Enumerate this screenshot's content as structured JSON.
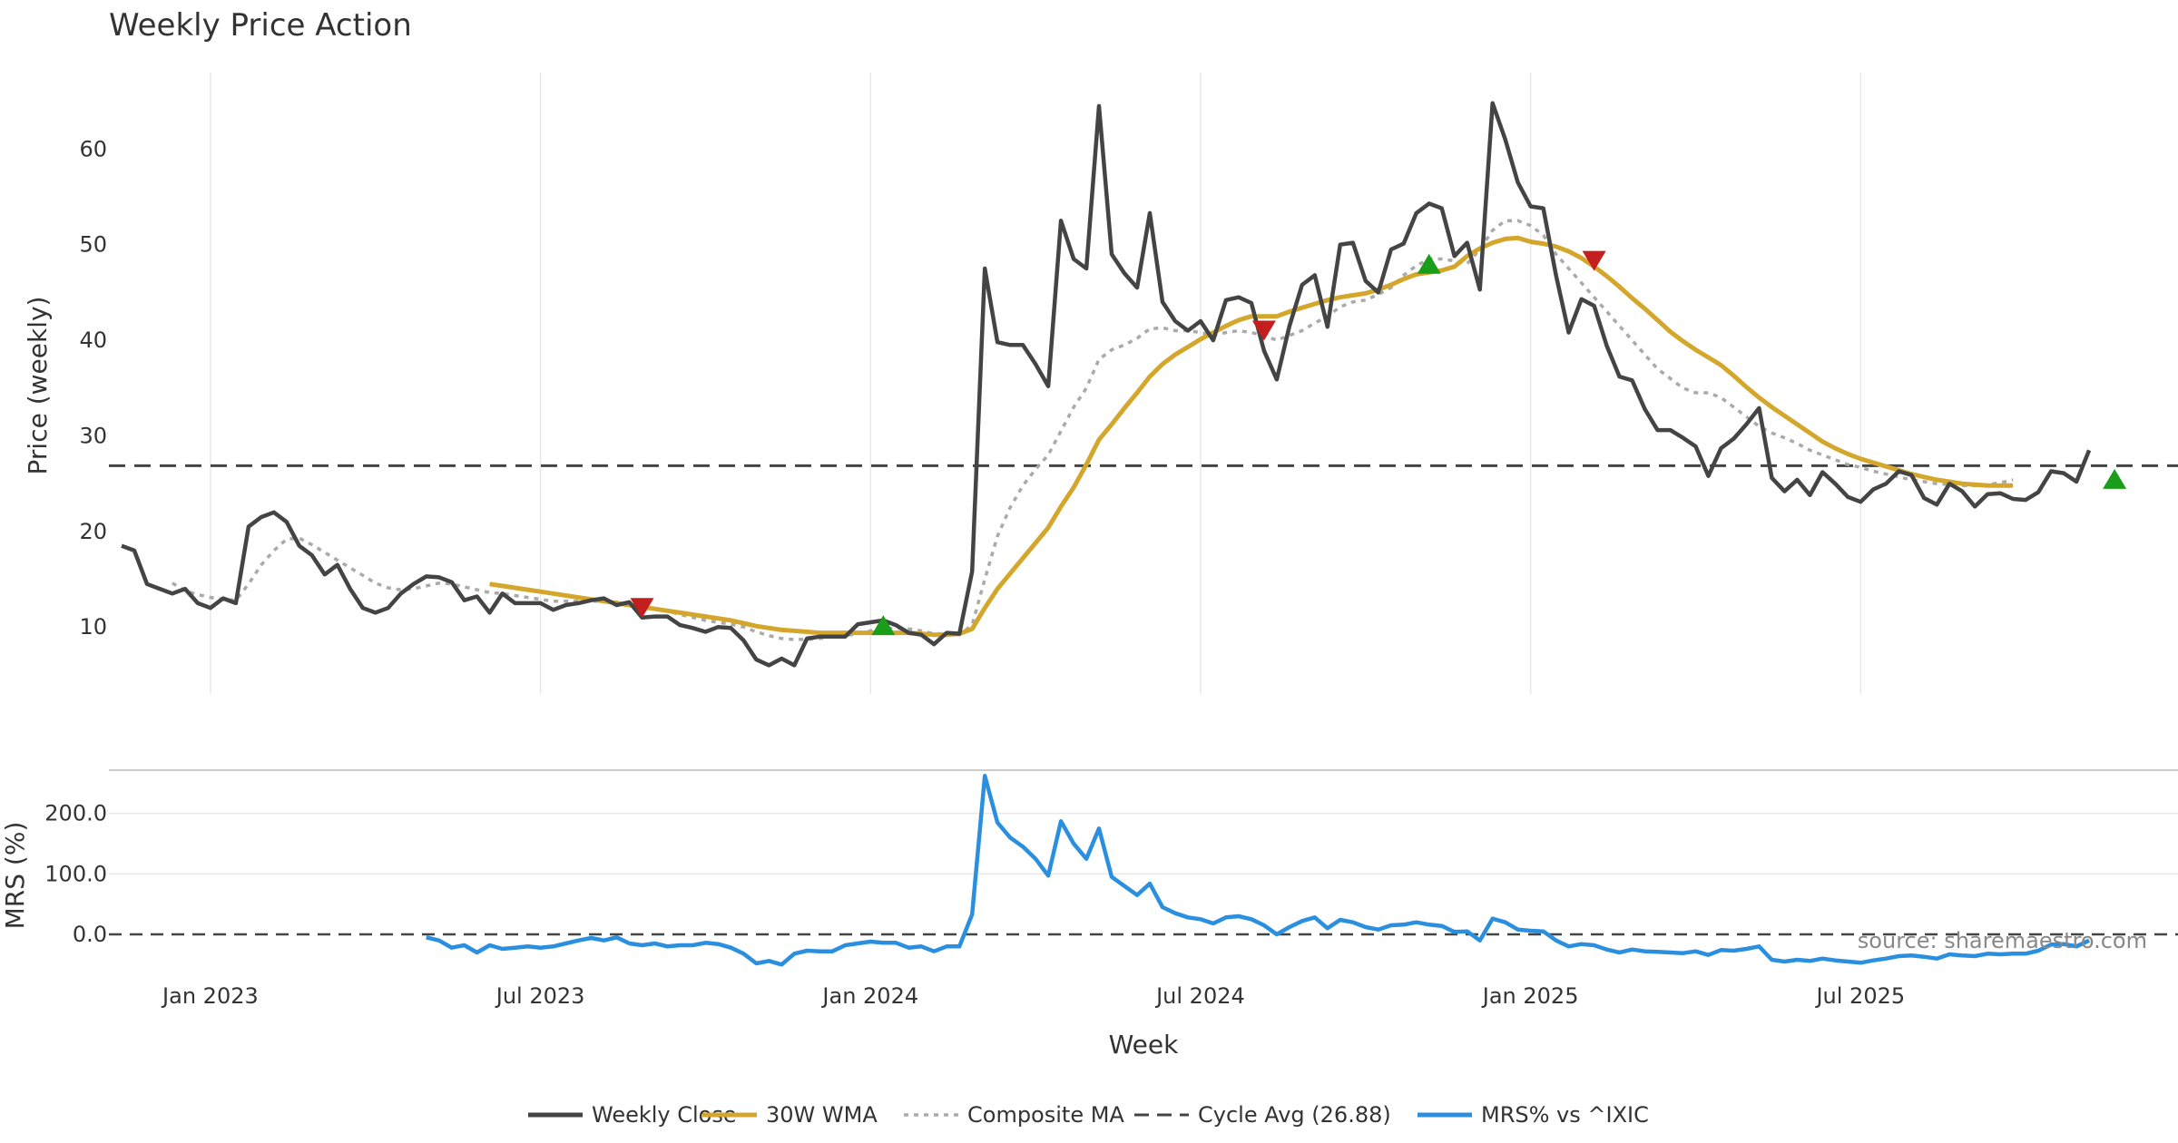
{
  "chart_data": {
    "type": "line",
    "title": "Weekly Price Action",
    "xlabel": "Week",
    "source": "source: sharemaestro.com",
    "x_ticks": [
      "Jan 2023",
      "Jul 2023",
      "Jan 2024",
      "Jul 2024",
      "Jan 2025",
      "Jul 2025"
    ],
    "x_tick_weeks": [
      7,
      33,
      59,
      85,
      111,
      137
    ],
    "x_range_weeks": [
      -1,
      162
    ],
    "price_panel": {
      "ylabel": "Price (weekly)",
      "ylim": [
        3,
        68
      ],
      "yticks": [
        10,
        20,
        30,
        40,
        50,
        60
      ],
      "cycle_avg": 26.88,
      "weekly_close": [
        18.5,
        18,
        14.5,
        14,
        13.5,
        14,
        12.5,
        12,
        13,
        12.5,
        20.5,
        21.5,
        22,
        21,
        18.5,
        17.5,
        15.5,
        16.5,
        14,
        12,
        11.5,
        12,
        13.5,
        14.5,
        15.3,
        15.2,
        14.7,
        12.8,
        13.2,
        11.5,
        13.5,
        12.5,
        12.5,
        12.5,
        11.8,
        12.3,
        12.5,
        12.8,
        13,
        12.3,
        12.6,
        11,
        11.1,
        11.1,
        10.2,
        9.9,
        9.5,
        10,
        9.9,
        8.6,
        6.6,
        6,
        6.7,
        6,
        8.8,
        9,
        9,
        9,
        10.3,
        10.5,
        10.7,
        10.2,
        9.4,
        9.2,
        8.2,
        9.4,
        9.3,
        15.8,
        47.5,
        39.8,
        39.5,
        39.5,
        37.5,
        35.2,
        52.5,
        48.5,
        47.5,
        64.5,
        49,
        47,
        45.5,
        53.3,
        44,
        42,
        41,
        42,
        40,
        44.2,
        44.5,
        43.9,
        38.9,
        35.9,
        41.5,
        45.8,
        46.8,
        41.4,
        50,
        50.2,
        46.2,
        45,
        49.5,
        50.1,
        53.3,
        54.3,
        53.8,
        48.8,
        50.2,
        45.3,
        64.8,
        61,
        56.5,
        54,
        53.8,
        46.8,
        40.8,
        44.3,
        43.6,
        39.4,
        36.2,
        35.8,
        32.8,
        30.6,
        30.6,
        29.8,
        28.9,
        25.8,
        28.7,
        29.7,
        31.2,
        32.9,
        25.6,
        24.2,
        25.4,
        23.8,
        26.2,
        25,
        23.6,
        23.1,
        24.4,
        25,
        26.3,
        25.9,
        23.5,
        22.8,
        25,
        24.2,
        22.6,
        23.9,
        24,
        23.4,
        23.3,
        24.1,
        26.3,
        26.1,
        25.2,
        28.5
      ],
      "wma_30w": [
        null,
        null,
        null,
        null,
        null,
        null,
        null,
        null,
        null,
        null,
        null,
        null,
        null,
        null,
        null,
        null,
        null,
        null,
        null,
        null,
        null,
        null,
        null,
        null,
        null,
        null,
        null,
        null,
        null,
        14.5,
        14.3,
        14.1,
        13.9,
        13.7,
        13.5,
        13.3,
        13.1,
        12.9,
        12.7,
        12.5,
        12.3,
        12.1,
        11.9,
        11.7,
        11.5,
        11.3,
        11.1,
        10.9,
        10.7,
        10.4,
        10.1,
        9.9,
        9.7,
        9.6,
        9.5,
        9.4,
        9.4,
        9.4,
        9.4,
        9.4,
        9.4,
        9.4,
        9.4,
        9.3,
        9.2,
        9.2,
        9.3,
        9.8,
        12,
        14,
        15.6,
        17.2,
        18.8,
        20.4,
        22.6,
        24.6,
        27,
        29.6,
        31.2,
        32.9,
        34.5,
        36.2,
        37.5,
        38.5,
        39.3,
        40.1,
        40.8,
        41.5,
        42.1,
        42.5,
        42.5,
        42.5,
        43,
        43.4,
        43.8,
        44.2,
        44.5,
        44.7,
        44.9,
        45.3,
        45.8,
        46.4,
        46.9,
        47.1,
        47.3,
        47.7,
        48.8,
        49.6,
        50.2,
        50.6,
        50.7,
        50.3,
        50.1,
        49.8,
        49.3,
        48.6,
        47.7,
        46.7,
        45.6,
        44.4,
        43.3,
        42.1,
        40.9,
        39.9,
        39,
        38.2,
        37.4,
        36.3,
        35.1,
        34,
        33,
        32.1,
        31.2,
        30.3,
        29.4,
        28.7,
        28.1,
        27.6,
        27.2,
        26.8,
        26.4,
        26,
        25.7,
        25.4,
        25.2,
        25,
        24.9,
        24.8,
        24.8,
        24.8
      ],
      "composite_ma": [
        null,
        null,
        null,
        null,
        14.6,
        13.8,
        13.4,
        13.1,
        12.9,
        12.8,
        14.5,
        16.5,
        18,
        19.2,
        19.3,
        18.6,
        17.8,
        17,
        16.2,
        15.4,
        14.6,
        14.1,
        13.9,
        14,
        14.3,
        14.6,
        14.5,
        14.2,
        13.9,
        13.6,
        13.5,
        13.3,
        13.1,
        12.9,
        12.7,
        12.7,
        12.7,
        12.7,
        12.7,
        12.6,
        12.5,
        12.2,
        11.9,
        11.7,
        11.3,
        11,
        10.7,
        10.5,
        10.3,
        10,
        9.5,
        9.1,
        8.8,
        8.7,
        8.7,
        8.8,
        9,
        9.1,
        9.3,
        9.6,
        9.8,
        9.9,
        9.8,
        9.6,
        9.3,
        9.3,
        9.2,
        10.2,
        15,
        19.5,
        22.5,
        24.8,
        26.5,
        28,
        30.5,
        33,
        35,
        38,
        39,
        39.5,
        40.2,
        41.2,
        41.3,
        41,
        41,
        40.8,
        40.5,
        40.8,
        41,
        40.8,
        40.5,
        40,
        40.5,
        41,
        41.8,
        42.5,
        43.5,
        44,
        44.2,
        44.8,
        45.5,
        46.8,
        47.8,
        48.5,
        48.5,
        48.3,
        48,
        49.5,
        51.5,
        52.5,
        52.5,
        52,
        51,
        49,
        47.5,
        46,
        44.5,
        43,
        41.5,
        40,
        38.5,
        37,
        36,
        35,
        34.5,
        34.5,
        34,
        33,
        32,
        31,
        30.3,
        29.8,
        29.2,
        28.5,
        28,
        27.5,
        27,
        26.7,
        26.3,
        26,
        25.7,
        25.4,
        25.2,
        25,
        24.9,
        24.8,
        24.8,
        24.9,
        25.1,
        25.4
      ],
      "signals": [
        {
          "week": 41,
          "value": 12,
          "type": "sell"
        },
        {
          "week": 60,
          "value": 10.2,
          "type": "buy"
        },
        {
          "week": 90,
          "value": 41,
          "type": "sell"
        },
        {
          "week": 103,
          "value": 48,
          "type": "buy"
        },
        {
          "week": 116,
          "value": 48.3,
          "type": "sell"
        },
        {
          "week": 157,
          "value": 25.5,
          "type": "buy"
        }
      ]
    },
    "mrs_panel": {
      "ylabel": "MRS (%)",
      "ylim": [
        -60,
        270
      ],
      "yticks": [
        0,
        100,
        200
      ],
      "ytick_labels": [
        "0.0",
        "100.0",
        "200.0"
      ],
      "baseline": 0,
      "start_week": 24,
      "mrs_pct": [
        -5,
        -10,
        -22,
        -18,
        -30,
        -18,
        -24,
        -22,
        -20,
        -22,
        -20,
        -15,
        -10,
        -6,
        -10,
        -5,
        -15,
        -18,
        -15,
        -20,
        -18,
        -18,
        -14,
        -16,
        -22,
        -32,
        -48,
        -44,
        -50,
        -32,
        -27,
        -28,
        -28,
        -18,
        -15,
        -12,
        -14,
        -14,
        -22,
        -20,
        -28,
        -20,
        -20,
        33,
        262,
        185,
        160,
        145,
        125,
        97,
        187,
        150,
        125,
        175,
        95,
        80,
        65,
        84,
        45,
        35,
        28,
        25,
        18,
        28,
        30,
        25,
        15,
        0,
        12,
        22,
        28,
        10,
        24,
        20,
        12,
        8,
        15,
        16,
        20,
        16,
        14,
        4,
        5,
        -10,
        26,
        20,
        8,
        6,
        5,
        -10,
        -20,
        -16,
        -18,
        -25,
        -30,
        -25,
        -28,
        -29,
        -30,
        -31,
        -28,
        -34,
        -26,
        -27,
        -24,
        -20,
        -42,
        -45,
        -42,
        -44,
        -40,
        -43,
        -45,
        -47,
        -43,
        -40,
        -36,
        -35,
        -37,
        -40,
        -33,
        -35,
        -36,
        -32,
        -33,
        -32,
        -32,
        -27,
        -17,
        -16,
        -20,
        -10
      ]
    },
    "legend": [
      {
        "label": "Weekly Close",
        "color": "#444444",
        "style": "solid"
      },
      {
        "label": "30W WMA",
        "color": "#D4A72C",
        "style": "solid"
      },
      {
        "label": "Composite MA",
        "color": "#AAAAAA",
        "style": "dotted"
      },
      {
        "label": "Cycle Avg (26.88)",
        "color": "#444444",
        "style": "dashed"
      },
      {
        "label": "MRS% vs ^IXIC",
        "color": "#2B8FE0",
        "style": "solid"
      }
    ],
    "colors": {
      "close": "#444444",
      "wma": "#D4A72C",
      "composite": "#AAAAAA",
      "cycle": "#444444",
      "mrs": "#2B8FE0",
      "buy": "#1A9E1A",
      "sell": "#C41E1E",
      "grid": "#E8E8E8"
    }
  }
}
